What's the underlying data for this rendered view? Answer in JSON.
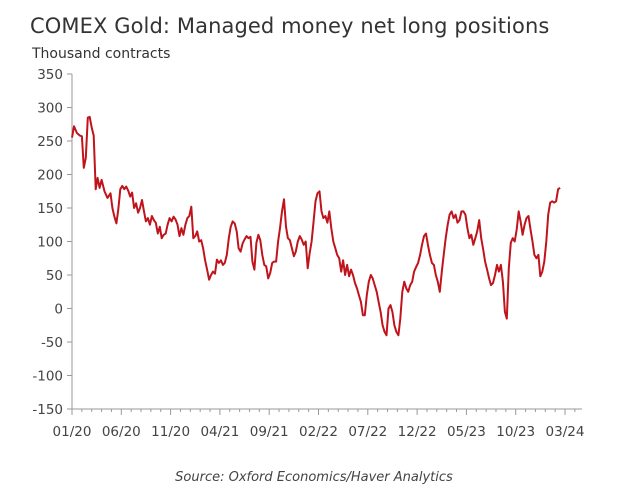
{
  "chart_data": {
    "type": "line",
    "title": "COMEX Gold: Managed money net long positions",
    "ylabel": "Thousand contracts",
    "xlabel": "",
    "source": "Source: Oxford Economics/Haver Analytics",
    "ylim": [
      -150,
      350
    ],
    "yticks": [
      350,
      300,
      250,
      200,
      150,
      100,
      50,
      0,
      -50,
      -100,
      -150
    ],
    "xlim": [
      0,
      51
    ],
    "xtick_labels": [
      {
        "label": "01/20",
        "m": 0
      },
      {
        "label": "06/20",
        "m": 5
      },
      {
        "label": "11/20",
        "m": 10
      },
      {
        "label": "04/21",
        "m": 15
      },
      {
        "label": "09/21",
        "m": 20
      },
      {
        "label": "02/22",
        "m": 25
      },
      {
        "label": "07/22",
        "m": 30
      },
      {
        "label": "12/22",
        "m": 35
      },
      {
        "label": "05/23",
        "m": 40
      },
      {
        "label": "10/23",
        "m": 45
      },
      {
        "label": "03/24",
        "m": 50
      }
    ],
    "series": [
      {
        "name": "Managed money net long positions",
        "color": "#c0141c",
        "points": [
          [
            0,
            255
          ],
          [
            0.2,
            272
          ],
          [
            0.5,
            262
          ],
          [
            0.8,
            258
          ],
          [
            1.0,
            257
          ],
          [
            1.2,
            210
          ],
          [
            1.4,
            225
          ],
          [
            1.6,
            285
          ],
          [
            1.8,
            286
          ],
          [
            2.0,
            270
          ],
          [
            2.2,
            258
          ],
          [
            2.4,
            178
          ],
          [
            2.6,
            195
          ],
          [
            2.8,
            180
          ],
          [
            3.0,
            192
          ],
          [
            3.3,
            175
          ],
          [
            3.6,
            165
          ],
          [
            3.9,
            172
          ],
          [
            4.1,
            150
          ],
          [
            4.3,
            137
          ],
          [
            4.5,
            127
          ],
          [
            4.7,
            148
          ],
          [
            4.9,
            178
          ],
          [
            5.1,
            183
          ],
          [
            5.3,
            178
          ],
          [
            5.5,
            182
          ],
          [
            5.7,
            176
          ],
          [
            5.9,
            167
          ],
          [
            6.1,
            173
          ],
          [
            6.3,
            150
          ],
          [
            6.5,
            157
          ],
          [
            6.7,
            143
          ],
          [
            6.9,
            150
          ],
          [
            7.1,
            162
          ],
          [
            7.3,
            145
          ],
          [
            7.5,
            130
          ],
          [
            7.7,
            135
          ],
          [
            7.9,
            125
          ],
          [
            8.1,
            138
          ],
          [
            8.3,
            132
          ],
          [
            8.5,
            128
          ],
          [
            8.7,
            112
          ],
          [
            8.9,
            122
          ],
          [
            9.1,
            105
          ],
          [
            9.3,
            110
          ],
          [
            9.5,
            112
          ],
          [
            9.7,
            125
          ],
          [
            9.9,
            135
          ],
          [
            10.1,
            130
          ],
          [
            10.3,
            137
          ],
          [
            10.5,
            133
          ],
          [
            10.7,
            125
          ],
          [
            10.9,
            108
          ],
          [
            11.1,
            120
          ],
          [
            11.3,
            110
          ],
          [
            11.5,
            125
          ],
          [
            11.7,
            135
          ],
          [
            11.9,
            138
          ],
          [
            12.1,
            152
          ],
          [
            12.3,
            105
          ],
          [
            12.5,
            108
          ],
          [
            12.7,
            115
          ],
          [
            12.9,
            100
          ],
          [
            13.1,
            102
          ],
          [
            13.3,
            90
          ],
          [
            13.5,
            72
          ],
          [
            13.7,
            58
          ],
          [
            13.9,
            43
          ],
          [
            14.1,
            50
          ],
          [
            14.3,
            55
          ],
          [
            14.5,
            52
          ],
          [
            14.7,
            73
          ],
          [
            14.9,
            68
          ],
          [
            15.1,
            72
          ],
          [
            15.3,
            65
          ],
          [
            15.5,
            68
          ],
          [
            15.7,
            80
          ],
          [
            15.9,
            105
          ],
          [
            16.1,
            122
          ],
          [
            16.3,
            130
          ],
          [
            16.5,
            127
          ],
          [
            16.7,
            115
          ],
          [
            16.9,
            90
          ],
          [
            17.1,
            85
          ],
          [
            17.3,
            97
          ],
          [
            17.5,
            103
          ],
          [
            17.7,
            108
          ],
          [
            17.9,
            105
          ],
          [
            18.1,
            107
          ],
          [
            18.3,
            70
          ],
          [
            18.5,
            58
          ],
          [
            18.7,
            98
          ],
          [
            18.9,
            110
          ],
          [
            19.1,
            102
          ],
          [
            19.3,
            80
          ],
          [
            19.5,
            65
          ],
          [
            19.7,
            63
          ],
          [
            19.9,
            45
          ],
          [
            20.1,
            53
          ],
          [
            20.3,
            68
          ],
          [
            20.5,
            70
          ],
          [
            20.7,
            70
          ],
          [
            20.9,
            100
          ],
          [
            21.1,
            120
          ],
          [
            21.3,
            145
          ],
          [
            21.5,
            163
          ],
          [
            21.7,
            122
          ],
          [
            21.9,
            105
          ],
          [
            22.1,
            102
          ],
          [
            22.3,
            90
          ],
          [
            22.5,
            78
          ],
          [
            22.7,
            85
          ],
          [
            22.9,
            100
          ],
          [
            23.1,
            108
          ],
          [
            23.3,
            103
          ],
          [
            23.5,
            95
          ],
          [
            23.7,
            100
          ],
          [
            23.9,
            60
          ],
          [
            24.1,
            82
          ],
          [
            24.3,
            100
          ],
          [
            24.5,
            130
          ],
          [
            24.7,
            160
          ],
          [
            24.9,
            172
          ],
          [
            25.1,
            175
          ],
          [
            25.3,
            145
          ],
          [
            25.5,
            135
          ],
          [
            25.7,
            138
          ],
          [
            25.9,
            128
          ],
          [
            26.1,
            145
          ],
          [
            26.3,
            120
          ],
          [
            26.5,
            100
          ],
          [
            26.7,
            90
          ],
          [
            26.9,
            80
          ],
          [
            27.1,
            75
          ],
          [
            27.3,
            55
          ],
          [
            27.5,
            72
          ],
          [
            27.7,
            50
          ],
          [
            27.9,
            65
          ],
          [
            28.1,
            48
          ],
          [
            28.3,
            58
          ],
          [
            28.5,
            50
          ],
          [
            28.7,
            38
          ],
          [
            28.9,
            30
          ],
          [
            29.1,
            20
          ],
          [
            29.3,
            10
          ],
          [
            29.5,
            -10
          ],
          [
            29.7,
            -10
          ],
          [
            29.9,
            20
          ],
          [
            30.1,
            40
          ],
          [
            30.3,
            50
          ],
          [
            30.5,
            45
          ],
          [
            30.7,
            35
          ],
          [
            30.9,
            25
          ],
          [
            31.1,
            10
          ],
          [
            31.3,
            -5
          ],
          [
            31.5,
            -25
          ],
          [
            31.7,
            -35
          ],
          [
            31.9,
            -40
          ],
          [
            32.1,
            0
          ],
          [
            32.3,
            5
          ],
          [
            32.5,
            -5
          ],
          [
            32.7,
            -25
          ],
          [
            32.9,
            -35
          ],
          [
            33.1,
            -40
          ],
          [
            33.3,
            -15
          ],
          [
            33.5,
            25
          ],
          [
            33.7,
            40
          ],
          [
            33.9,
            30
          ],
          [
            34.1,
            25
          ],
          [
            34.3,
            35
          ],
          [
            34.5,
            40
          ],
          [
            34.7,
            55
          ],
          [
            34.9,
            62
          ],
          [
            35.1,
            68
          ],
          [
            35.3,
            80
          ],
          [
            35.5,
            95
          ],
          [
            35.7,
            108
          ],
          [
            35.9,
            112
          ],
          [
            36.1,
            95
          ],
          [
            36.3,
            80
          ],
          [
            36.5,
            68
          ],
          [
            36.7,
            65
          ],
          [
            36.9,
            50
          ],
          [
            37.1,
            40
          ],
          [
            37.3,
            25
          ],
          [
            37.5,
            55
          ],
          [
            37.7,
            80
          ],
          [
            37.9,
            105
          ],
          [
            38.1,
            125
          ],
          [
            38.3,
            140
          ],
          [
            38.5,
            145
          ],
          [
            38.7,
            135
          ],
          [
            38.9,
            140
          ],
          [
            39.1,
            128
          ],
          [
            39.3,
            132
          ],
          [
            39.5,
            145
          ],
          [
            39.7,
            145
          ],
          [
            39.9,
            140
          ],
          [
            40.1,
            120
          ],
          [
            40.3,
            105
          ],
          [
            40.5,
            110
          ],
          [
            40.7,
            95
          ],
          [
            40.9,
            105
          ],
          [
            41.1,
            115
          ],
          [
            41.3,
            132
          ],
          [
            41.5,
            105
          ],
          [
            41.7,
            88
          ],
          [
            41.9,
            70
          ],
          [
            42.1,
            58
          ],
          [
            42.3,
            45
          ],
          [
            42.5,
            35
          ],
          [
            42.7,
            38
          ],
          [
            42.9,
            50
          ],
          [
            43.1,
            65
          ],
          [
            43.3,
            55
          ],
          [
            43.5,
            65
          ],
          [
            43.7,
            40
          ],
          [
            43.9,
            -5
          ],
          [
            44.1,
            -15
          ],
          [
            44.3,
            60
          ],
          [
            44.5,
            98
          ],
          [
            44.7,
            105
          ],
          [
            44.9,
            100
          ],
          [
            45.1,
            118
          ],
          [
            45.3,
            145
          ],
          [
            45.5,
            130
          ],
          [
            45.7,
            110
          ],
          [
            45.9,
            125
          ],
          [
            46.1,
            135
          ],
          [
            46.3,
            138
          ],
          [
            46.5,
            118
          ],
          [
            46.7,
            100
          ],
          [
            46.9,
            80
          ],
          [
            47.1,
            75
          ],
          [
            47.3,
            80
          ],
          [
            47.5,
            48
          ],
          [
            47.7,
            55
          ],
          [
            47.9,
            70
          ],
          [
            48.1,
            100
          ],
          [
            48.3,
            140
          ],
          [
            48.5,
            158
          ],
          [
            48.7,
            160
          ],
          [
            48.9,
            158
          ],
          [
            49.1,
            160
          ],
          [
            49.3,
            178
          ],
          [
            49.5,
            180
          ]
        ]
      }
    ],
    "grid": false,
    "legend": "none"
  }
}
